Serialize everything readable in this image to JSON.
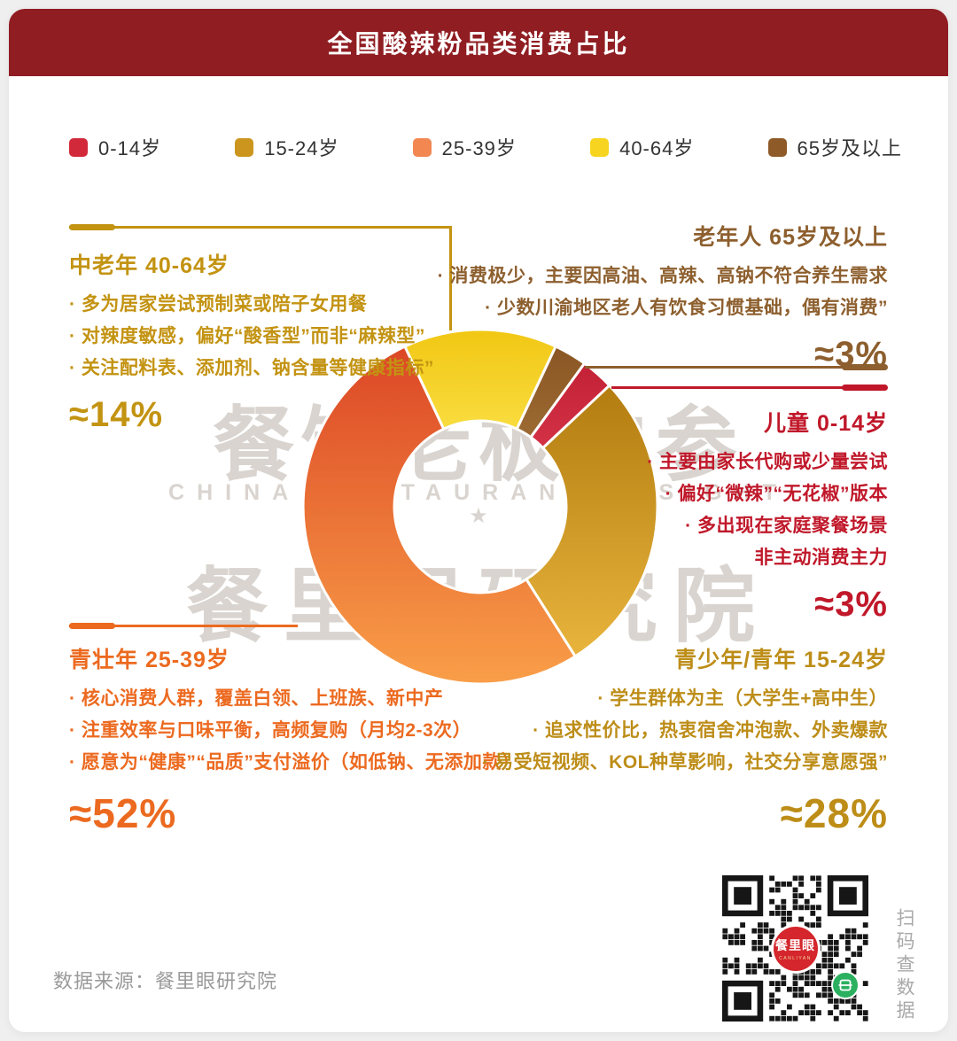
{
  "page": {
    "background": "#efefef",
    "card_background": "#ffffff"
  },
  "header": {
    "title": "全国酸辣粉品类消费占比",
    "background": "#8f1d22",
    "text_color": "#ffffff"
  },
  "legend": {
    "items": [
      {
        "label": "0-14岁",
        "color": "#d2293a"
      },
      {
        "label": "15-24岁",
        "color": "#cc961e"
      },
      {
        "label": "25-39岁",
        "color": "#f28752"
      },
      {
        "label": "40-64岁",
        "color": "#f6d41f"
      },
      {
        "label": "65岁及以上",
        "color": "#8d5a28"
      }
    ]
  },
  "chart_data": {
    "type": "pie",
    "donut": true,
    "title": "全国酸辣粉品类消费占比",
    "unit": "%",
    "start_angle_deg": -25.2,
    "inner_radius_ratio": 0.485,
    "legend_position": "top",
    "segments": [
      {
        "label": "40-64岁",
        "group": "中老年",
        "value": 14,
        "approx": "≈14%",
        "color_start": "#f1c713",
        "color_end": "#f9dc3f"
      },
      {
        "label": "65岁及以上",
        "group": "老年人",
        "value": 3,
        "approx": "≈3%",
        "color_start": "#8a5624",
        "color_end": "#9c6a32"
      },
      {
        "label": "0-14岁",
        "group": "儿童",
        "value": 3,
        "approx": "≈3%",
        "color_start": "#c32135",
        "color_end": "#d33246"
      },
      {
        "label": "15-24岁",
        "group": "青少年/青年",
        "value": 28,
        "approx": "≈28%",
        "color_start": "#b37c10",
        "color_end": "#e8b43c"
      },
      {
        "label": "25-39岁",
        "group": "青壮年",
        "value": 52,
        "approx": "≈52%",
        "color_start": "#dc4726",
        "color_end": "#f99e48"
      }
    ]
  },
  "sections": {
    "middle_aged": {
      "heading": "中老年 40-64岁",
      "color": "#c39312",
      "bullets": [
        "· 多为居家尝试预制菜或陪子女用餐",
        "· 对辣度敏感，偏好“酸香型”而非“麻辣型”",
        "· 关注配料表、添加剂、钠含量等健康指标”"
      ],
      "percent": "≈14%"
    },
    "elderly": {
      "heading": "老年人 65岁及以上",
      "color": "#8d5f2e",
      "bullets": [
        "· 消费极少，主要因高油、高辣、高钠不符合养生需求",
        "· 少数川渝地区老人有饮食习惯基础，偶有消费”"
      ],
      "percent": "≈3%"
    },
    "children": {
      "heading": "儿童 0-14岁",
      "color": "#c0182a",
      "bullets": [
        "· 主要由家长代购或少量尝试",
        "· 偏好“微辣”“无花椒”版本",
        "· 多出现在家庭聚餐场景",
        "非主动消费主力"
      ],
      "percent": "≈3%"
    },
    "young_adults": {
      "heading": "青壮年 25-39岁",
      "color": "#ec6a20",
      "bullets": [
        "· 核心消费人群，覆盖白领、上班族、新中产",
        "· 注重效率与口味平衡，高频复购（月均2-3次）",
        "· 愿意为“健康”“品质”支付溢价（如低钠、无添加款）"
      ],
      "percent": "≈52%"
    },
    "youth": {
      "heading": "青少年/青年 15-24岁",
      "color": "#bd8d18",
      "bullets": [
        "· 学生群体为主（大学生+高中生）",
        "· 追求性价比，热衷宿舍冲泡款、外卖爆款",
        "· 易受短视频、KOL种草影响，社交分享意愿强”"
      ],
      "percent": "≈28%"
    }
  },
  "watermark": {
    "color": "#d9d4cf",
    "line1": "餐饮老板内参",
    "line2": "CHINA RESTAURANT INSIGHT",
    "star": "★",
    "line3": "餐里眼研究院"
  },
  "footer": {
    "source": "数据来源：餐里眼研究院",
    "qr_caption": "扫码查数据",
    "qr_logo_text": "餐里眼",
    "qr_logo_sub": "CANLIYAN"
  }
}
